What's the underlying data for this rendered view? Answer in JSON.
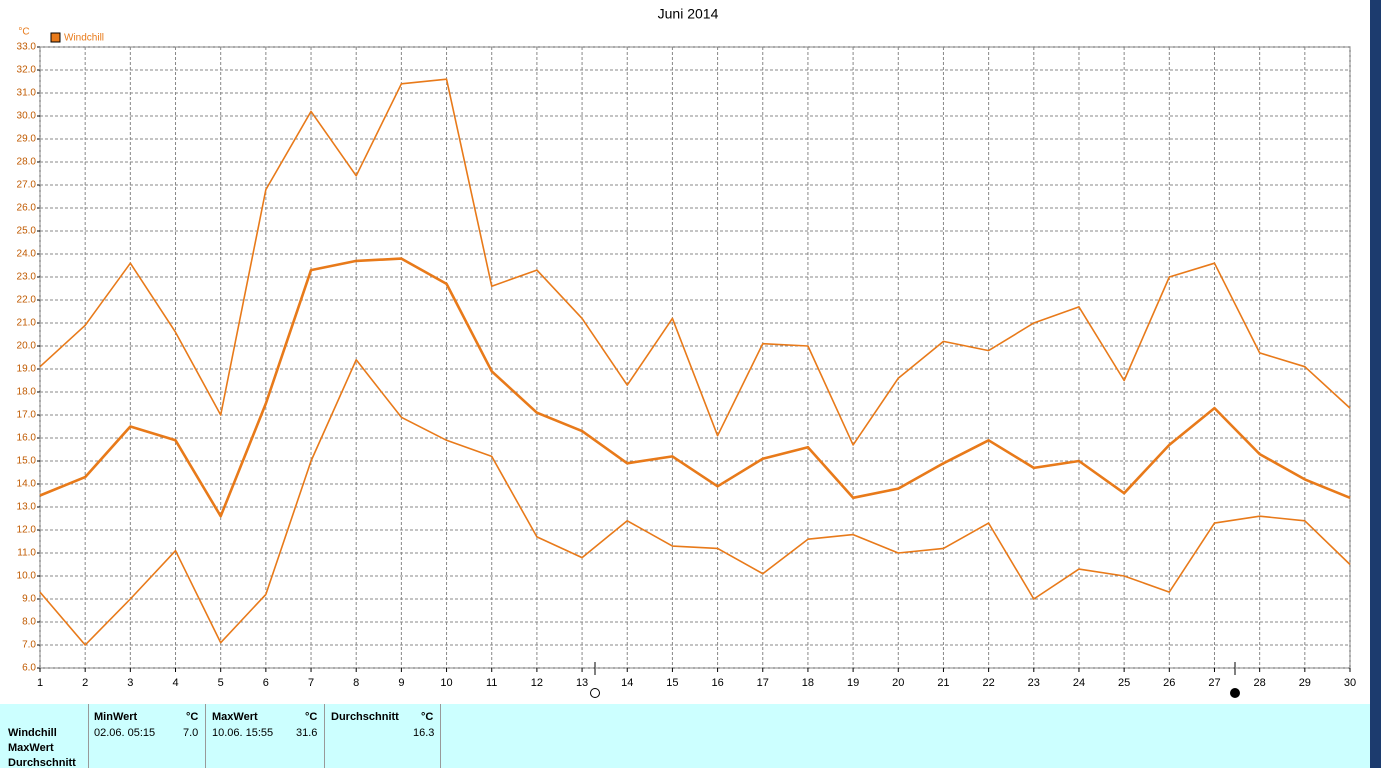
{
  "chart_data": {
    "type": "line",
    "title": "Juni 2014",
    "y_unit": "°C",
    "legend": "Windchill",
    "legend_color": "#e87a1a",
    "x": [
      1,
      2,
      3,
      4,
      5,
      6,
      7,
      8,
      9,
      10,
      11,
      12,
      13,
      14,
      15,
      16,
      17,
      18,
      19,
      20,
      21,
      22,
      23,
      24,
      25,
      26,
      27,
      28,
      29,
      30
    ],
    "xlim": [
      1,
      30
    ],
    "xticks": [
      1,
      2,
      3,
      4,
      5,
      6,
      7,
      8,
      9,
      10,
      11,
      12,
      13,
      14,
      15,
      16,
      17,
      18,
      19,
      20,
      21,
      22,
      23,
      24,
      25,
      26,
      27,
      28,
      29,
      30
    ],
    "ylim": [
      6,
      33
    ],
    "yticks": [
      {
        "value": 6,
        "label": "6.0"
      },
      {
        "value": 7,
        "label": "7.0"
      },
      {
        "value": 8,
        "label": "8.0"
      },
      {
        "value": 9,
        "label": "9.0"
      },
      {
        "value": 10,
        "label": "10.0"
      },
      {
        "value": 11,
        "label": "11.0"
      },
      {
        "value": 12,
        "label": "12.0"
      },
      {
        "value": 13,
        "label": "13.0"
      },
      {
        "value": 14,
        "label": "14.0"
      },
      {
        "value": 15,
        "label": "15.0"
      },
      {
        "value": 16,
        "label": "16.0"
      },
      {
        "value": 17,
        "label": "17.0"
      },
      {
        "value": 18,
        "label": "18.0"
      },
      {
        "value": 19,
        "label": "19.0"
      },
      {
        "value": 20,
        "label": "20.0"
      },
      {
        "value": 21,
        "label": "21.0"
      },
      {
        "value": 22,
        "label": "22.0"
      },
      {
        "value": 23,
        "label": "23.0"
      },
      {
        "value": 24,
        "label": "24.0"
      },
      {
        "value": 25,
        "label": "25.0"
      },
      {
        "value": 26,
        "label": "26.0"
      },
      {
        "value": 27,
        "label": "27.0"
      },
      {
        "value": 28,
        "label": "28.0"
      },
      {
        "value": 29,
        "label": "29.0"
      },
      {
        "value": 30,
        "label": "30.0"
      },
      {
        "value": 31,
        "label": "31.0"
      },
      {
        "value": 32,
        "label": "32.0"
      },
      {
        "value": 33,
        "label": "33.0"
      }
    ],
    "grid": true,
    "series": [
      {
        "color": "#e87a1a",
        "values": [
          19.1,
          20.9,
          23.6,
          20.6,
          17.0,
          26.8,
          30.2,
          27.4,
          31.4,
          31.6,
          22.6,
          23.3,
          21.2,
          18.3,
          21.2,
          16.1,
          20.1,
          20.0,
          15.7,
          18.6,
          20.2,
          19.8,
          21.0,
          21.7,
          18.5,
          23.0,
          23.6,
          19.7,
          19.1,
          17.3
        ]
      },
      {
        "color": "#e87a1a",
        "values": [
          13.5,
          14.3,
          16.5,
          15.9,
          12.6,
          17.5,
          23.3,
          23.7,
          23.8,
          22.7,
          18.9,
          17.1,
          16.3,
          14.9,
          15.2,
          13.9,
          15.1,
          15.6,
          13.4,
          13.8,
          14.9,
          15.9,
          14.7,
          15.0,
          13.6,
          15.7,
          17.3,
          15.3,
          14.2,
          13.4
        ]
      },
      {
        "color": "#e87a1a",
        "values": [
          9.3,
          7.0,
          9.0,
          11.1,
          7.1,
          9.2,
          15.0,
          19.4,
          16.9,
          15.9,
          15.2,
          11.7,
          10.8,
          12.4,
          11.3,
          11.2,
          10.1,
          11.6,
          11.8,
          11.0,
          11.2,
          12.3,
          9.0,
          10.3,
          10.0,
          9.3,
          12.3,
          12.6,
          12.4,
          10.5
        ]
      }
    ]
  },
  "stats": {
    "row_labels": [
      "Windchill",
      "MaxWert",
      "Durchschnitt"
    ],
    "columns": [
      {
        "header": "MinWert",
        "unit": "°C",
        "time": "02.06.  05:15",
        "value": "7.0"
      },
      {
        "header": "MaxWert",
        "unit": "°C",
        "time": "10.06.  15:55",
        "value": "31.6"
      },
      {
        "header": "Durchschnitt",
        "unit": "°C",
        "value": "16.3"
      }
    ]
  }
}
